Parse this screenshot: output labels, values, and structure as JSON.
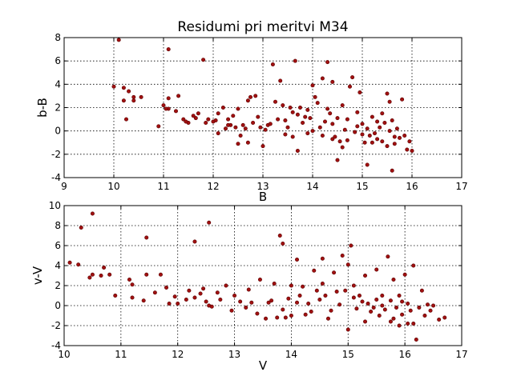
{
  "chart_data": [
    {
      "type": "scatter",
      "title": "Residumi pri meritvi M34",
      "xlabel": "B",
      "ylabel": "b-B",
      "xlim": [
        9,
        17
      ],
      "ylim": [
        -4,
        8
      ],
      "xticks": [
        9,
        10,
        11,
        12,
        13,
        14,
        15,
        16,
        17
      ],
      "yticks": [
        -4,
        -2,
        0,
        2,
        4,
        6,
        8
      ],
      "grid": true,
      "color": "#a01010",
      "points": [
        [
          10.1,
          7.8
        ],
        [
          10.0,
          3.8
        ],
        [
          10.2,
          3.7
        ],
        [
          10.3,
          3.4
        ],
        [
          10.4,
          2.9
        ],
        [
          10.55,
          2.9
        ],
        [
          10.2,
          2.6
        ],
        [
          10.4,
          2.6
        ],
        [
          10.25,
          1.0
        ],
        [
          11.1,
          7.0
        ],
        [
          11.8,
          6.1
        ],
        [
          11.0,
          2.2
        ],
        [
          11.1,
          2.8
        ],
        [
          11.3,
          3.0
        ],
        [
          11.1,
          1.9
        ],
        [
          10.9,
          0.4
        ],
        [
          11.4,
          1.0
        ],
        [
          11.5,
          0.7
        ],
        [
          11.6,
          1.3
        ],
        [
          11.7,
          1.5
        ],
        [
          11.9,
          1.0
        ],
        [
          12.0,
          0.8
        ],
        [
          12.1,
          1.5
        ],
        [
          12.2,
          2.0
        ],
        [
          12.3,
          1.0
        ],
        [
          12.35,
          0.5
        ],
        [
          12.1,
          -0.2
        ],
        [
          12.4,
          1.3
        ],
        [
          12.5,
          1.9
        ],
        [
          12.6,
          0.5
        ],
        [
          12.7,
          2.6
        ],
        [
          12.75,
          2.9
        ],
        [
          12.85,
          3.0
        ],
        [
          12.5,
          -1.1
        ],
        [
          12.7,
          -1.0
        ],
        [
          12.9,
          1.2
        ],
        [
          13.0,
          -1.3
        ],
        [
          13.1,
          0.5
        ],
        [
          13.2,
          5.7
        ],
        [
          13.35,
          4.3
        ],
        [
          13.25,
          2.5
        ],
        [
          13.4,
          2.2
        ],
        [
          13.55,
          2.0
        ],
        [
          13.65,
          6.0
        ],
        [
          13.7,
          1.4
        ],
        [
          13.3,
          1.0
        ],
        [
          13.5,
          0.3
        ],
        [
          13.6,
          -0.5
        ],
        [
          13.7,
          -1.7
        ],
        [
          13.8,
          0.7
        ],
        [
          13.9,
          1.8
        ],
        [
          14.0,
          3.9
        ],
        [
          14.1,
          2.4
        ],
        [
          14.2,
          4.5
        ],
        [
          14.3,
          5.9
        ],
        [
          14.4,
          4.2
        ],
        [
          14.25,
          0.8
        ],
        [
          14.35,
          1.5
        ],
        [
          14.5,
          -2.5
        ],
        [
          14.45,
          -0.5
        ],
        [
          14.6,
          2.2
        ],
        [
          14.7,
          1.0
        ],
        [
          14.75,
          3.8
        ],
        [
          14.8,
          4.6
        ],
        [
          14.55,
          -0.9
        ],
        [
          14.9,
          0.4
        ],
        [
          14.95,
          3.3
        ],
        [
          15.0,
          -0.3
        ],
        [
          15.05,
          -1.0
        ],
        [
          15.1,
          -2.9
        ],
        [
          15.2,
          1.2
        ],
        [
          15.25,
          -0.2
        ],
        [
          15.3,
          -0.7
        ],
        [
          15.4,
          1.5
        ],
        [
          15.45,
          0.7
        ],
        [
          15.5,
          3.2
        ],
        [
          15.55,
          2.5
        ],
        [
          15.6,
          -3.4
        ],
        [
          15.65,
          -0.5
        ],
        [
          15.7,
          0.2
        ],
        [
          15.8,
          2.7
        ],
        [
          15.9,
          -1.6
        ],
        [
          15.85,
          -0.4
        ],
        [
          16.0,
          -1.7
        ],
        [
          15.95,
          -0.9
        ],
        [
          15.4,
          -0.9
        ],
        [
          15.1,
          0.2
        ],
        [
          14.85,
          -0.1
        ],
        [
          14.65,
          0.1
        ],
        [
          14.4,
          0.6
        ],
        [
          14.15,
          0.3
        ],
        [
          13.95,
          1.1
        ],
        [
          13.75,
          2.0
        ],
        [
          13.45,
          0.9
        ],
        [
          13.15,
          0.6
        ],
        [
          12.95,
          0.3
        ],
        [
          12.8,
          0.7
        ],
        [
          12.65,
          0.2
        ],
        [
          12.45,
          0.3
        ],
        [
          12.25,
          0.2
        ],
        [
          12.05,
          0.9
        ],
        [
          11.85,
          0.7
        ],
        [
          11.65,
          1.1
        ],
        [
          11.45,
          0.8
        ],
        [
          11.25,
          1.7
        ],
        [
          11.05,
          1.9
        ],
        [
          14.2,
          -0.4
        ],
        [
          14.7,
          -0.8
        ],
        [
          15.15,
          -0.4
        ],
        [
          15.35,
          0.3
        ],
        [
          15.6,
          0.9
        ],
        [
          15.75,
          -0.6
        ],
        [
          14.05,
          2.9
        ],
        [
          13.85,
          1.2
        ],
        [
          13.6,
          1.6
        ],
        [
          14.3,
          1.9
        ],
        [
          14.5,
          1.1
        ],
        [
          14.9,
          1.6
        ],
        [
          15.0,
          0.6
        ],
        [
          15.2,
          -1.0
        ],
        [
          15.5,
          -1.3
        ],
        [
          15.65,
          -1.1
        ],
        [
          13.45,
          -0.3
        ],
        [
          13.05,
          0.1
        ],
        [
          12.55,
          -0.4
        ],
        [
          12.3,
          0.5
        ],
        [
          14.6,
          -1.4
        ],
        [
          14.4,
          -0.7
        ],
        [
          15.3,
          0.8
        ],
        [
          15.55,
          0.0
        ],
        [
          14.0,
          0.0
        ],
        [
          13.9,
          -0.2
        ]
      ]
    },
    {
      "type": "scatter",
      "title": "",
      "xlabel": "V",
      "ylabel": "v-V",
      "xlim": [
        10,
        17
      ],
      "ylim": [
        -4,
        10
      ],
      "xticks": [
        10,
        11,
        12,
        13,
        14,
        15,
        16,
        17
      ],
      "yticks": [
        -4,
        -2,
        0,
        2,
        4,
        6,
        8,
        10
      ],
      "grid": true,
      "color": "#a01010",
      "points": [
        [
          10.5,
          9.2
        ],
        [
          10.3,
          7.8
        ],
        [
          11.45,
          6.8
        ],
        [
          12.55,
          8.3
        ],
        [
          12.3,
          6.4
        ],
        [
          13.8,
          7.0
        ],
        [
          13.85,
          6.2
        ],
        [
          10.1,
          4.3
        ],
        [
          10.25,
          4.1
        ],
        [
          10.45,
          2.8
        ],
        [
          10.5,
          3.1
        ],
        [
          10.65,
          3.0
        ],
        [
          10.7,
          3.8
        ],
        [
          10.8,
          3.1
        ],
        [
          10.9,
          1.0
        ],
        [
          11.15,
          2.6
        ],
        [
          11.2,
          2.1
        ],
        [
          11.45,
          3.1
        ],
        [
          11.7,
          3.1
        ],
        [
          11.8,
          1.8
        ],
        [
          11.95,
          0.9
        ],
        [
          12.0,
          0.2
        ],
        [
          12.2,
          1.5
        ],
        [
          12.3,
          0.8
        ],
        [
          12.4,
          1.2
        ],
        [
          12.5,
          0.4
        ],
        [
          12.55,
          0.0
        ],
        [
          12.7,
          1.3
        ],
        [
          12.85,
          2.0
        ],
        [
          13.0,
          1.0
        ],
        [
          13.1,
          0.4
        ],
        [
          13.3,
          0.3
        ],
        [
          13.45,
          2.6
        ],
        [
          13.55,
          -1.3
        ],
        [
          13.65,
          0.5
        ],
        [
          13.75,
          -1.2
        ],
        [
          13.9,
          -1.2
        ],
        [
          14.0,
          2.0
        ],
        [
          14.1,
          4.6
        ],
        [
          14.2,
          1.9
        ],
        [
          14.3,
          0.2
        ],
        [
          14.4,
          3.5
        ],
        [
          14.55,
          4.7
        ],
        [
          14.6,
          1.0
        ],
        [
          14.75,
          3.3
        ],
        [
          14.9,
          5.0
        ],
        [
          15.0,
          4.1
        ],
        [
          15.05,
          6.0
        ],
        [
          15.1,
          2.0
        ],
        [
          15.2,
          1.0
        ],
        [
          15.3,
          3.0
        ],
        [
          15.35,
          0.2
        ],
        [
          15.5,
          3.6
        ],
        [
          15.6,
          1.0
        ],
        [
          15.7,
          4.9
        ],
        [
          15.8,
          2.6
        ],
        [
          15.9,
          1.0
        ],
        [
          16.0,
          3.1
        ],
        [
          16.05,
          -1.8
        ],
        [
          16.15,
          4.0
        ],
        [
          16.2,
          -3.4
        ],
        [
          16.3,
          1.5
        ],
        [
          16.5,
          0.0
        ],
        [
          16.6,
          -1.4
        ],
        [
          16.45,
          -0.5
        ],
        [
          16.35,
          -1.0
        ],
        [
          16.1,
          -0.5
        ],
        [
          15.95,
          0.4
        ],
        [
          15.85,
          -0.2
        ],
        [
          15.75,
          0.5
        ],
        [
          15.65,
          -0.4
        ],
        [
          15.55,
          -1.0
        ],
        [
          15.45,
          -0.2
        ],
        [
          15.25,
          0.4
        ],
        [
          15.15,
          -0.3
        ],
        [
          15.0,
          -2.4
        ],
        [
          14.85,
          0.1
        ],
        [
          14.7,
          -0.5
        ],
        [
          14.5,
          0.6
        ],
        [
          14.35,
          -0.6
        ],
        [
          14.15,
          1.0
        ],
        [
          13.95,
          0.7
        ],
        [
          13.85,
          -0.4
        ],
        [
          13.6,
          0.3
        ],
        [
          13.4,
          -0.8
        ],
        [
          13.2,
          -0.2
        ],
        [
          12.95,
          -0.5
        ],
        [
          12.75,
          0.6
        ],
        [
          12.6,
          -0.1
        ],
        [
          12.15,
          0.6
        ],
        [
          11.85,
          0.2
        ],
        [
          11.6,
          1.3
        ],
        [
          11.4,
          0.5
        ],
        [
          11.2,
          0.8
        ],
        [
          14.0,
          -1.0
        ],
        [
          14.25,
          -0.9
        ],
        [
          14.45,
          1.5
        ],
        [
          14.65,
          -1.3
        ],
        [
          14.95,
          1.5
        ],
        [
          15.1,
          0.8
        ],
        [
          15.4,
          -0.6
        ],
        [
          15.6,
          0.0
        ],
        [
          15.8,
          -1.3
        ],
        [
          15.95,
          -0.9
        ],
        [
          16.05,
          0.2
        ],
        [
          16.25,
          -0.2
        ],
        [
          16.4,
          0.1
        ],
        [
          15.3,
          -1.6
        ],
        [
          15.5,
          0.6
        ],
        [
          15.75,
          -1.6
        ],
        [
          14.55,
          2.2
        ],
        [
          14.8,
          1.4
        ],
        [
          14.1,
          0.3
        ],
        [
          13.7,
          2.2
        ],
        [
          13.25,
          1.6
        ],
        [
          12.45,
          1.7
        ],
        [
          16.7,
          -1.2
        ],
        [
          16.15,
          -1.8
        ],
        [
          15.9,
          -2.0
        ]
      ]
    }
  ]
}
